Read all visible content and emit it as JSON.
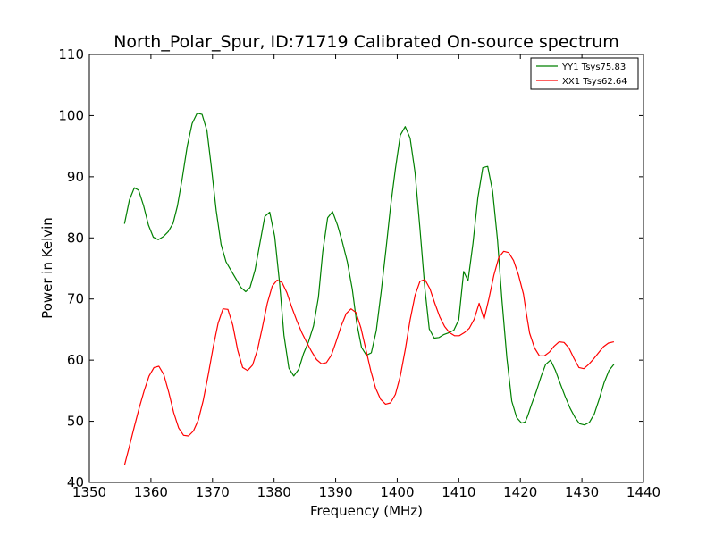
{
  "chart_data": {
    "type": "line",
    "title": "North_Polar_Spur, ID:71719 Calibrated On-source spectrum",
    "xlabel": "Frequency (MHz)",
    "ylabel": "Power in Kelvin",
    "xlim": [
      1350,
      1440
    ],
    "ylim": [
      40,
      110
    ],
    "xticks": [
      "1350",
      "1360",
      "1370",
      "1380",
      "1390",
      "1400",
      "1410",
      "1420",
      "1430",
      "1440"
    ],
    "yticks": [
      "40",
      "50",
      "60",
      "70",
      "80",
      "90",
      "100",
      "110"
    ],
    "grid": false,
    "legend_position": "top-right",
    "series": [
      {
        "name": "YY1 Tsys75.83",
        "color": "#008000",
        "x": [
          1355.7,
          1356.5,
          1357.3,
          1358.0,
          1358.8,
          1359.6,
          1360.4,
          1361.2,
          1362.0,
          1362.8,
          1363.6,
          1364.3,
          1365.1,
          1365.9,
          1366.7,
          1367.5,
          1368.3,
          1369.1,
          1369.8,
          1370.6,
          1371.4,
          1372.2,
          1373.0,
          1373.8,
          1374.6,
          1375.4,
          1376.1,
          1376.9,
          1377.7,
          1378.5,
          1379.3,
          1380.1,
          1380.9,
          1381.6,
          1382.4,
          1383.2,
          1384.0,
          1384.8,
          1385.6,
          1386.4,
          1387.2,
          1387.9,
          1388.7,
          1389.5,
          1390.3,
          1391.1,
          1391.9,
          1392.7,
          1393.4,
          1394.2,
          1395.0,
          1395.8,
          1396.6,
          1397.4,
          1398.2,
          1398.9,
          1399.7,
          1400.5,
          1401.3,
          1402.1,
          1402.9,
          1403.7,
          1404.5,
          1405.2,
          1406.0,
          1406.8,
          1407.6,
          1408.4,
          1409.2,
          1410.0,
          1410.8,
          1411.5,
          1412.3,
          1413.1,
          1413.9,
          1414.7,
          1415.5,
          1416.3,
          1417.0,
          1417.8,
          1418.6,
          1419.4,
          1420.2,
          1420.8,
          1421.2,
          1421.8,
          1422.6,
          1423.4,
          1424.1,
          1424.9,
          1425.7,
          1426.5,
          1427.3,
          1428.1,
          1428.9,
          1429.6,
          1430.4,
          1431.2,
          1432.0,
          1432.8,
          1433.6,
          1434.4,
          1435.2
        ],
        "values": [
          82.3,
          86.2,
          88.2,
          87.8,
          85.3,
          82.1,
          80.1,
          79.7,
          80.2,
          81.0,
          82.4,
          85.2,
          89.8,
          95.0,
          98.7,
          100.4,
          100.2,
          97.5,
          91.7,
          84.5,
          78.9,
          76.1,
          74.7,
          73.3,
          71.9,
          71.2,
          71.9,
          74.7,
          79.1,
          83.5,
          84.2,
          80.2,
          72.5,
          64.1,
          58.7,
          57.4,
          58.5,
          61.1,
          63.0,
          65.6,
          70.3,
          77.7,
          83.3,
          84.3,
          82.1,
          79.3,
          76.1,
          71.6,
          66.2,
          62.1,
          60.8,
          61.2,
          64.8,
          71.2,
          78.3,
          85.0,
          91.3,
          96.8,
          98.2,
          96.3,
          90.7,
          81.5,
          71.7,
          65.1,
          63.6,
          63.7,
          64.2,
          64.5,
          64.9,
          66.6,
          74.5,
          73.0,
          79.1,
          86.6,
          91.5,
          91.7,
          87.6,
          79.6,
          69.9,
          60.4,
          53.3,
          50.6,
          49.7,
          49.9,
          50.9,
          52.7,
          54.9,
          57.4,
          59.3,
          60.0,
          58.3,
          56.1,
          54.0,
          52.1,
          50.6,
          49.6,
          49.4,
          49.8,
          51.2,
          53.6,
          56.3,
          58.3,
          59.3
        ]
      },
      {
        "name": "XX1 Tsys62.64",
        "color": "#ff0000",
        "x": [
          1355.7,
          1356.5,
          1357.3,
          1358.1,
          1358.9,
          1359.7,
          1360.5,
          1361.3,
          1362.1,
          1362.9,
          1363.7,
          1364.5,
          1365.3,
          1366.1,
          1366.9,
          1367.7,
          1368.5,
          1369.3,
          1370.1,
          1370.9,
          1371.7,
          1372.5,
          1373.3,
          1374.1,
          1374.9,
          1375.7,
          1376.5,
          1377.3,
          1378.1,
          1378.9,
          1379.7,
          1380.5,
          1381.3,
          1382.1,
          1382.9,
          1383.7,
          1384.5,
          1385.3,
          1386.1,
          1386.9,
          1387.7,
          1388.5,
          1389.3,
          1390.1,
          1390.9,
          1391.7,
          1392.5,
          1393.3,
          1394.1,
          1394.9,
          1395.7,
          1396.5,
          1397.3,
          1398.1,
          1398.9,
          1399.7,
          1400.5,
          1401.3,
          1402.1,
          1402.9,
          1403.7,
          1404.5,
          1405.3,
          1406.1,
          1406.9,
          1407.7,
          1408.5,
          1409.3,
          1410.1,
          1410.9,
          1411.7,
          1412.5,
          1413.3,
          1414.1,
          1414.9,
          1415.7,
          1416.5,
          1417.3,
          1418.1,
          1418.9,
          1419.7,
          1420.5,
          1421.0,
          1421.5,
          1422.3,
          1423.1,
          1423.9,
          1424.7,
          1425.5,
          1426.3,
          1427.1,
          1427.9,
          1428.7,
          1429.5,
          1430.3,
          1431.1,
          1431.9,
          1432.7,
          1433.5,
          1434.3,
          1435.2
        ],
        "values": [
          42.8,
          45.9,
          49.1,
          52.2,
          55.0,
          57.4,
          58.8,
          59.0,
          57.6,
          54.7,
          51.4,
          48.9,
          47.7,
          47.6,
          48.4,
          50.2,
          53.4,
          57.6,
          62.1,
          66.0,
          68.4,
          68.3,
          65.7,
          61.6,
          58.8,
          58.3,
          59.2,
          61.7,
          65.4,
          69.3,
          72.1,
          73.1,
          72.7,
          71.0,
          68.6,
          66.4,
          64.5,
          62.9,
          61.4,
          60.1,
          59.4,
          59.6,
          60.8,
          63.1,
          65.6,
          67.6,
          68.4,
          67.8,
          65.3,
          61.8,
          58.3,
          55.4,
          53.6,
          52.8,
          53.0,
          54.4,
          57.4,
          61.7,
          66.6,
          70.6,
          72.9,
          73.2,
          71.7,
          69.3,
          67.1,
          65.5,
          64.5,
          64.0,
          64.0,
          64.5,
          65.2,
          66.7,
          69.3,
          66.7,
          70.1,
          73.9,
          76.8,
          77.8,
          77.6,
          76.3,
          73.9,
          70.8,
          67.5,
          64.4,
          62.0,
          60.7,
          60.7,
          61.3,
          62.3,
          63.0,
          62.9,
          62.0,
          60.3,
          58.8,
          58.6,
          59.3,
          60.2,
          61.2,
          62.2,
          62.8,
          63.0
        ]
      }
    ]
  }
}
